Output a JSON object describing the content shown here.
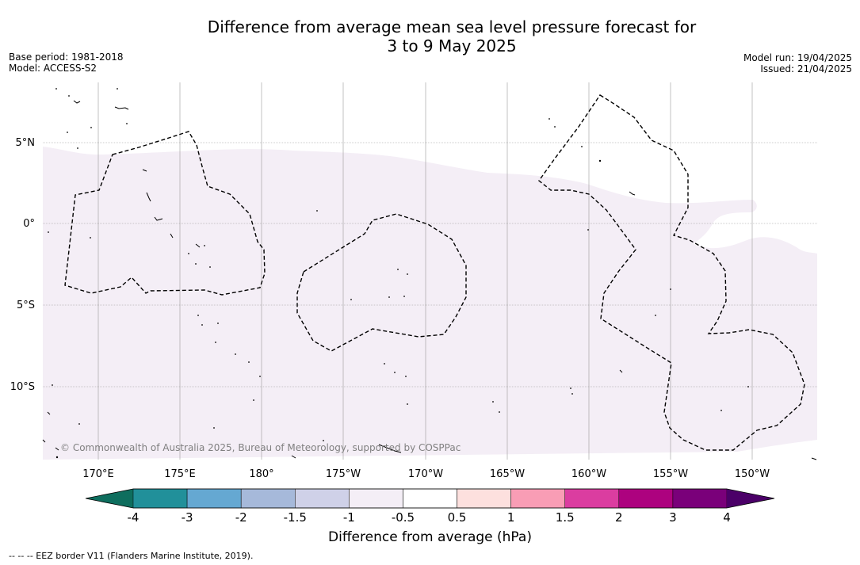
{
  "title": {
    "line1": "Difference from average mean sea level pressure forecast for",
    "line2": "3 to 9 May 2025"
  },
  "meta_left": {
    "base_period": "Base period: 1981-2018",
    "model": "Model: ACCESS-S2"
  },
  "meta_right": {
    "model_run": "Model run: 19/04/2025",
    "issued": "Issued: 21/04/2025"
  },
  "map": {
    "longitude_labels": [
      "170°E",
      "175°E",
      "180°",
      "175°W",
      "170°W",
      "165°W",
      "160°W",
      "155°W",
      "150°W"
    ],
    "latitude_labels": [
      "5°N",
      "0°",
      "5°S",
      "10°S"
    ],
    "copyright": "© Commonwealth of Australia 2025, Bureau of Meteorology, supported by COSPPac",
    "fill_color": "#f4eef6",
    "eez_color": "#000000"
  },
  "colorbar": {
    "label": "Difference from average (hPa)",
    "tick_labels": [
      "-4",
      "-3",
      "-2",
      "-1.5",
      "-1",
      "-0.5",
      "0.5",
      "1",
      "1.5",
      "2",
      "3",
      "4"
    ],
    "under_color": "#0e6e5e",
    "over_color": "#4b0068",
    "colors": [
      "#21909a",
      "#65a8d2",
      "#a6b9da",
      "#cfd1e8",
      "#f4eef6",
      "#ffffff",
      "#fde0de",
      "#f99db5",
      "#db3da0",
      "#ad027f",
      "#7a007a"
    ]
  },
  "footnote": "--  --  -- EEZ border V11 (Flanders Marine Institute, 2019)."
}
